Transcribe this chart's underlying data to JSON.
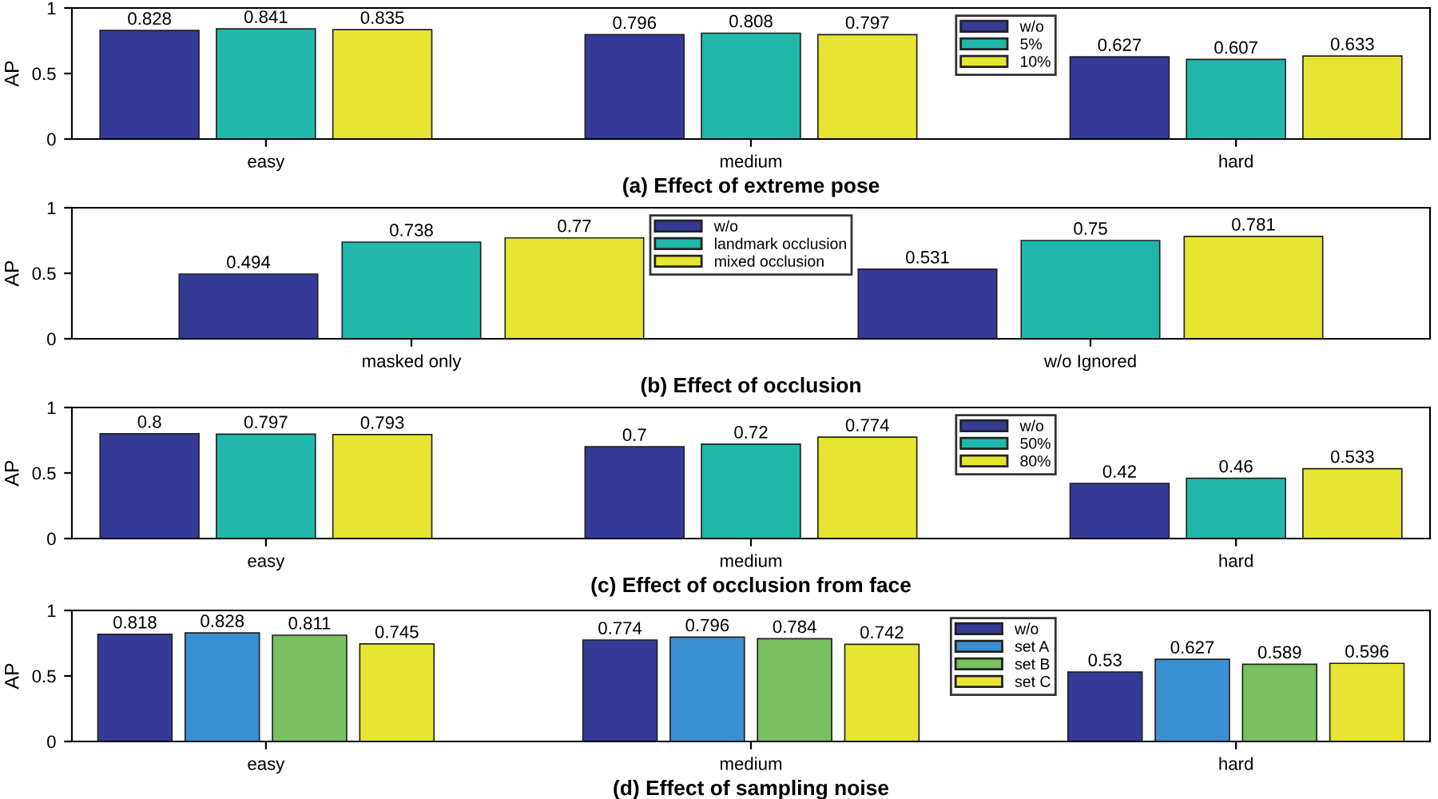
{
  "chart_data": [
    {
      "type": "bar",
      "title": "(a) Effect of extreme pose",
      "ylabel": "AP",
      "categories": [
        "easy",
        "medium",
        "hard"
      ],
      "series": [
        {
          "name": "w/o",
          "color": "#343a96",
          "values": [
            0.828,
            0.796,
            0.627
          ]
        },
        {
          "name": "5%",
          "color": "#20b8aa",
          "values": [
            0.841,
            0.808,
            0.607
          ]
        },
        {
          "name": "10%",
          "color": "#e6e632",
          "values": [
            0.835,
            0.797,
            0.633
          ]
        }
      ],
      "ylim": [
        0,
        1
      ],
      "yticks": [
        0,
        0.5,
        1
      ],
      "data_labels": true,
      "legend": "top right",
      "grid": false
    },
    {
      "type": "bar",
      "title": "(b) Effect of occlusion",
      "ylabel": "AP",
      "categories": [
        "masked only",
        "w/o Ignored"
      ],
      "series": [
        {
          "name": "w/o",
          "color": "#343a96",
          "values": [
            0.494,
            0.531
          ]
        },
        {
          "name": "landmark occlusion",
          "color": "#20b8aa",
          "values": [
            0.738,
            0.75
          ]
        },
        {
          "name": "mixed occlusion",
          "color": "#e6e632",
          "values": [
            0.77,
            0.781
          ]
        }
      ],
      "ylim": [
        0,
        1
      ],
      "yticks": [
        0,
        0.5,
        1
      ],
      "data_labels": true,
      "legend": "top",
      "grid": false
    },
    {
      "type": "bar",
      "title": "(c) Effect of occlusion from face",
      "ylabel": "AP",
      "categories": [
        "easy",
        "medium",
        "hard"
      ],
      "series": [
        {
          "name": "w/o",
          "color": "#343a96",
          "values": [
            0.8,
            0.7,
            0.42
          ]
        },
        {
          "name": "50%",
          "color": "#20b8aa",
          "values": [
            0.797,
            0.72,
            0.46
          ]
        },
        {
          "name": "80%",
          "color": "#e6e632",
          "values": [
            0.793,
            0.774,
            0.533
          ]
        }
      ],
      "ylim": [
        0,
        1
      ],
      "yticks": [
        0,
        0.5,
        1
      ],
      "data_labels": true,
      "legend": "top right",
      "grid": false
    },
    {
      "type": "bar",
      "title": "(d) Effect of sampling noise",
      "ylabel": "AP",
      "categories": [
        "easy",
        "medium",
        "hard"
      ],
      "series": [
        {
          "name": "w/o",
          "color": "#343a96",
          "values": [
            0.818,
            0.774,
            0.53
          ]
        },
        {
          "name": "set A",
          "color": "#3a8fd0",
          "values": [
            0.828,
            0.796,
            0.627
          ]
        },
        {
          "name": "set B",
          "color": "#78c060",
          "values": [
            0.811,
            0.784,
            0.589
          ]
        },
        {
          "name": "set C",
          "color": "#e6e632",
          "values": [
            0.745,
            0.742,
            0.596
          ]
        }
      ],
      "ylim": [
        0,
        1
      ],
      "yticks": [
        0,
        0.5,
        1
      ],
      "data_labels": true,
      "legend": "top right",
      "grid": false
    }
  ]
}
